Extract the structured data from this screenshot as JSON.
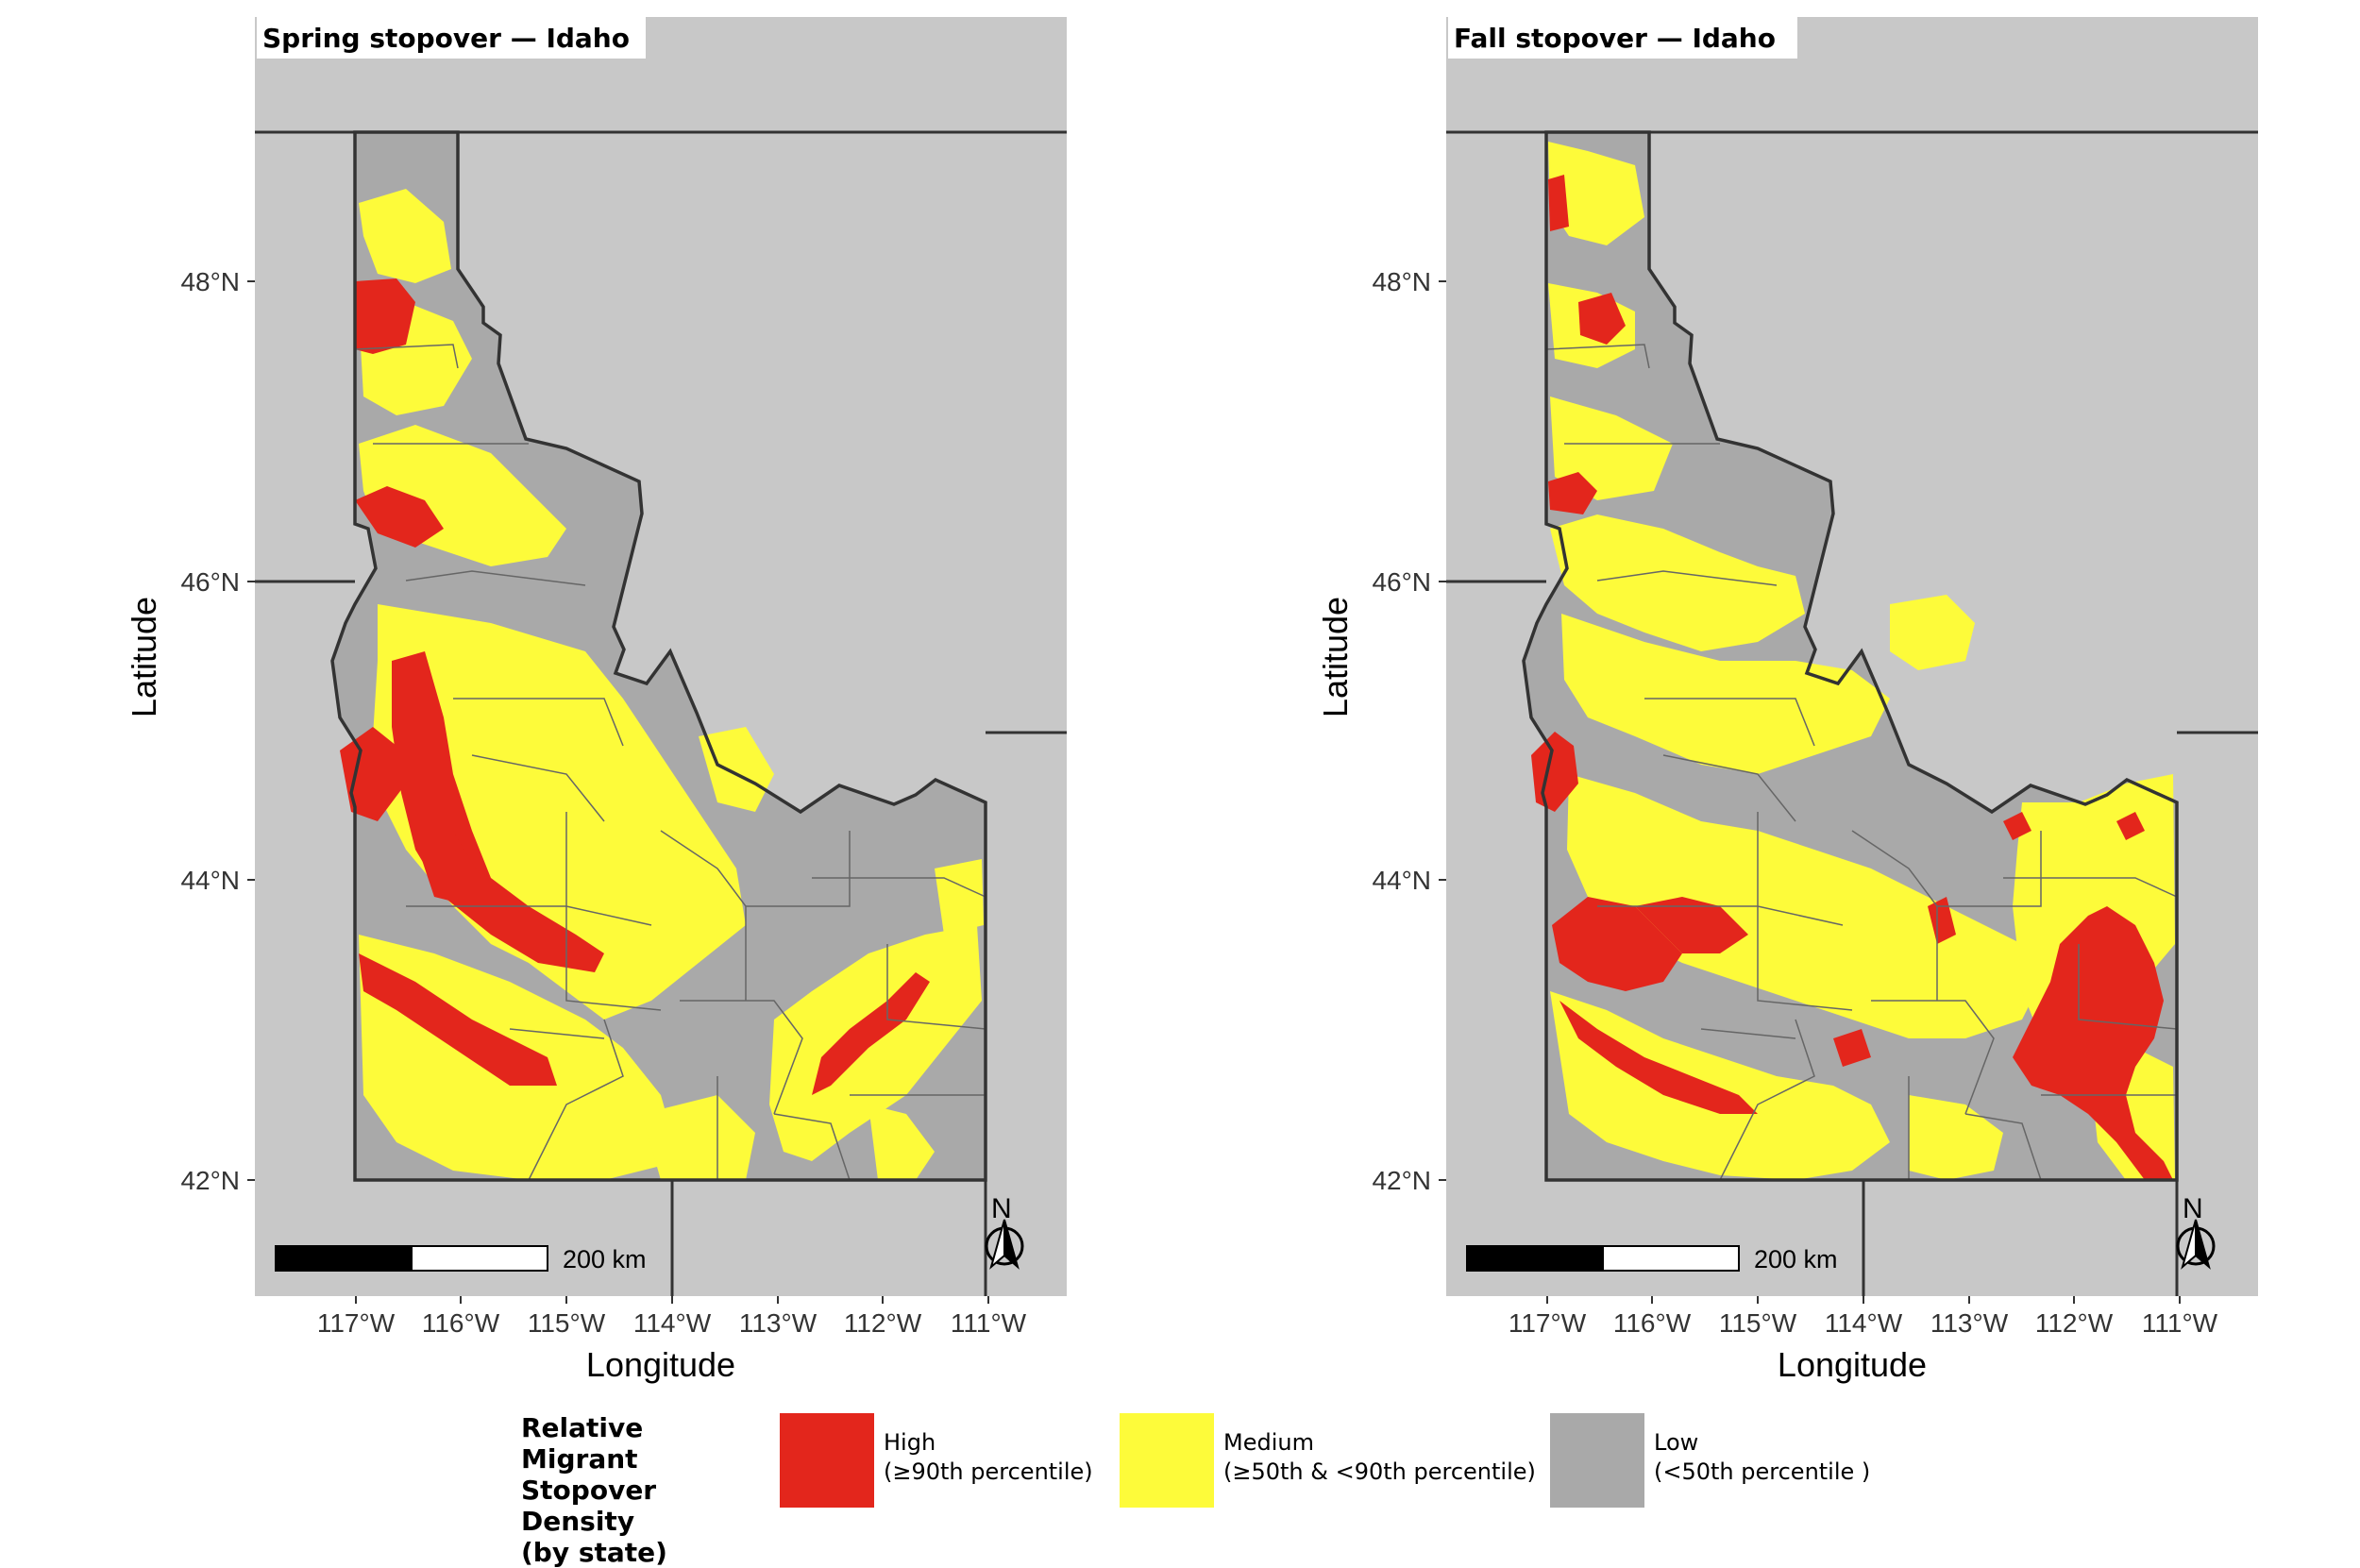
{
  "panels": [
    {
      "id": "spring",
      "title": "Spring stopover — Idaho",
      "xlabel": "Longitude",
      "ylabel": "Latitude",
      "x_ticks": [
        "117°W",
        "116°W",
        "115°W",
        "114°W",
        "113°W",
        "112°W",
        "111°W"
      ],
      "y_ticks": [
        "42°N",
        "44°N",
        "46°N",
        "48°N"
      ],
      "scale_bar_label": "200 km",
      "north_label": "N"
    },
    {
      "id": "fall",
      "title": "Fall stopover — Idaho",
      "xlabel": "Longitude",
      "ylabel": "Latitude",
      "x_ticks": [
        "117°W",
        "116°W",
        "115°W",
        "114°W",
        "113°W",
        "112°W",
        "111°W"
      ],
      "y_ticks": [
        "42°N",
        "44°N",
        "46°N",
        "48°N"
      ],
      "scale_bar_label": "200 km",
      "north_label": "N"
    }
  ],
  "legend": {
    "title": "Relative Migrant\nStopover Density\n(by state)",
    "items": [
      {
        "label": "High\n(≥90th percentile)",
        "color": "#e3261c"
      },
      {
        "label": "Medium\n(≥50th & <90th percentile)",
        "color": "#fdfb3a"
      },
      {
        "label": "Low\n(<50th percentile )",
        "color": "#a9a9a9"
      }
    ]
  },
  "colors": {
    "background_states": "#c8c8c8",
    "idaho_low": "#a9a9a9",
    "medium": "#fdfb3a",
    "high": "#e3261c",
    "border": "#333333"
  }
}
